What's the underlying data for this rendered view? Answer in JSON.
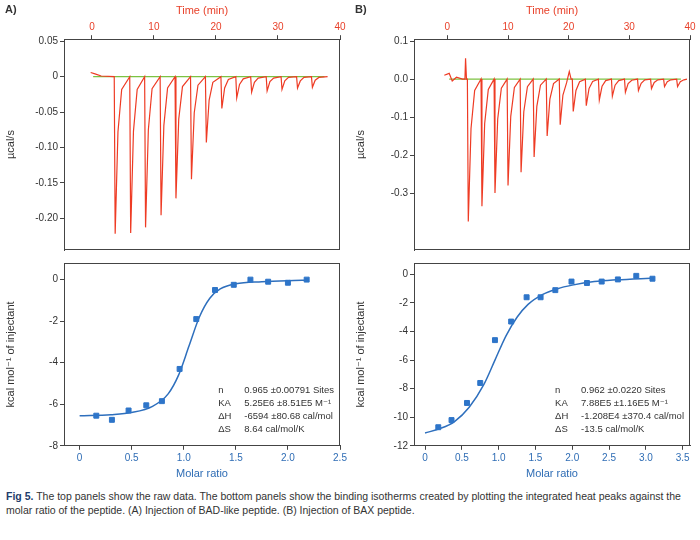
{
  "chart_data": [
    {
      "type": "line",
      "title": "A)",
      "x_label": "Time (min)",
      "y_label": "µcal/s",
      "xlim": [
        -4.5,
        40
      ],
      "xticks": [
        0,
        10,
        20,
        30,
        40
      ],
      "ylim": [
        -0.245,
        0.053
      ],
      "yticks": [
        {
          "value": -0.2,
          "label": "-0.20"
        },
        -0.15,
        {
          "value": -0.1,
          "label": "-0.10"
        },
        -0.05,
        0,
        0.05
      ],
      "grid": false,
      "series": [
        {
          "color": "#ee3b24",
          "marker": "none",
          "line_style": "solid",
          "x": [
            -0.2,
            0.5,
            1.5,
            3.6,
            3.75,
            4.2,
            4.8,
            6.1,
            6.25,
            6.7,
            7.3,
            8.5,
            8.65,
            9.1,
            9.7,
            11.0,
            11.15,
            11.6,
            12.2,
            13.4,
            13.55,
            14.0,
            14.6,
            15.9,
            16.05,
            16.5,
            17.1,
            18.3,
            18.45,
            18.9,
            19.5,
            20.8,
            20.95,
            21.4,
            22.0,
            23.2,
            23.35,
            23.8,
            24.4,
            25.6,
            25.75,
            26.2,
            26.8,
            28.1,
            28.25,
            28.7,
            29.3,
            30.5,
            30.65,
            31.1,
            31.7,
            33.0,
            33.15,
            33.6,
            34.2,
            35.4,
            35.55,
            36.0,
            36.6,
            38.0
          ],
          "values": [
            0.006,
            0.004,
            0.001,
            0,
            -0.222,
            -0.078,
            -0.018,
            0,
            -0.221,
            -0.077,
            -0.018,
            0,
            -0.213,
            -0.075,
            -0.017,
            0,
            -0.196,
            -0.069,
            -0.016,
            0,
            -0.172,
            -0.06,
            -0.014,
            0,
            -0.145,
            -0.051,
            -0.012,
            0,
            -0.093,
            -0.033,
            -0.008,
            0,
            -0.045,
            -0.016,
            -0.004,
            0,
            -0.03,
            -0.011,
            -0.003,
            0,
            -0.022,
            -0.008,
            -0.002,
            0,
            -0.02,
            -0.007,
            -0.002,
            0,
            -0.018,
            -0.006,
            -0.001,
            0,
            -0.016,
            -0.006,
            -0.001,
            0,
            -0.015,
            -0.005,
            -0.001,
            0
          ]
        },
        {
          "color": "#7cc242",
          "marker": "none",
          "line_style": "solid",
          "x": [
            0.2,
            37.5
          ],
          "values": [
            0,
            0
          ]
        }
      ]
    },
    {
      "type": "scatter",
      "x_label": "Molar ratio",
      "y_label": "kcal mol⁻¹ of injectant",
      "xlim": [
        -0.15,
        2.5
      ],
      "xticks": [
        0,
        0.5,
        {
          "value": 1,
          "label": "1.0"
        },
        1.5,
        {
          "value": 2,
          "label": "2.0"
        },
        2.5
      ],
      "ylim": [
        -8,
        0.8
      ],
      "yticks": [
        -8,
        -6,
        -4,
        -2,
        0
      ],
      "grid": false,
      "series": [
        {
          "type": "scatter",
          "color": "#2e75c9",
          "marker": "square",
          "x": [
            0.16,
            0.31,
            0.47,
            0.64,
            0.79,
            0.96,
            1.12,
            1.3,
            1.48,
            1.64,
            1.81,
            2.0,
            2.18
          ],
          "values": [
            -6.55,
            -6.75,
            -6.3,
            -6.05,
            -5.85,
            -4.3,
            -1.9,
            -0.5,
            -0.25,
            0.0,
            -0.1,
            -0.15,
            0.0
          ]
        },
        {
          "type": "line",
          "color": "#2e6fbd",
          "marker": "none",
          "line_style": "solid",
          "x": [
            0.0,
            0.3,
            0.5,
            0.7,
            0.85,
            0.95,
            1.05,
            1.15,
            1.25,
            1.35,
            1.5,
            1.75,
            2.0,
            2.2
          ],
          "values": [
            -6.55,
            -6.5,
            -6.4,
            -6.1,
            -5.5,
            -4.6,
            -3.2,
            -1.8,
            -0.9,
            -0.45,
            -0.2,
            -0.1,
            -0.05,
            -0.03
          ]
        }
      ],
      "annotations": [
        {
          "label": "n",
          "text": "0.965 ±0.00791 Sites"
        },
        {
          "label": "KA",
          "text": "5.25E6 ±8.51E5 M⁻¹"
        },
        {
          "label": "ΔH",
          "text": "-6594 ±80.68 cal/mol"
        },
        {
          "label": "ΔS",
          "text": "8.64 cal/mol/K"
        }
      ]
    },
    {
      "type": "line",
      "title": "B)",
      "x_label": "Time (min)",
      "y_label": "µcal/s",
      "xlim": [
        -5.5,
        40
      ],
      "xticks": [
        0,
        10,
        20,
        30,
        40
      ],
      "ylim": [
        -0.45,
        0.105
      ],
      "yticks": [
        -0.3,
        -0.2,
        -0.1,
        {
          "value": 0,
          "label": "0.0"
        },
        0.1
      ],
      "grid": false,
      "series": [
        {
          "color": "#ee3b24",
          "marker": "none",
          "line_style": "solid",
          "x": [
            -0.5,
            0.3,
            0.8,
            1.5,
            2.5,
            2.9,
            3.0,
            3.15,
            3.3,
            3.45,
            3.9,
            4.5,
            5.55,
            5.7,
            6.15,
            6.75,
            7.7,
            7.85,
            8.3,
            8.9,
            9.85,
            10.0,
            10.45,
            11.05,
            12.0,
            12.15,
            12.6,
            13.2,
            14.15,
            14.3,
            14.75,
            15.35,
            16.3,
            16.45,
            16.9,
            17.5,
            18.45,
            18.6,
            19.05,
            19.65,
            20.1,
            20.4,
            20.6,
            20.75,
            21.2,
            21.8,
            22.75,
            22.9,
            23.35,
            23.95,
            24.9,
            25.05,
            25.5,
            26.1,
            27.05,
            27.2,
            27.65,
            28.25,
            29.2,
            29.35,
            29.8,
            30.4,
            31.35,
            31.5,
            31.95,
            32.55,
            33.5,
            33.65,
            34.1,
            34.7,
            35.65,
            35.8,
            36.25,
            36.85,
            37.8,
            37.95,
            38.4,
            39.0,
            39.5
          ],
          "values": [
            0.01,
            0.015,
            -0.005,
            0.005,
            0,
            0,
            0.055,
            0,
            0,
            -0.375,
            -0.13,
            -0.03,
            0,
            -0.335,
            -0.117,
            -0.027,
            0,
            -0.3,
            -0.105,
            -0.024,
            0,
            -0.28,
            -0.098,
            -0.022,
            0,
            -0.245,
            -0.086,
            -0.02,
            0,
            -0.205,
            -0.072,
            -0.016,
            0,
            -0.15,
            -0.053,
            -0.012,
            0,
            -0.12,
            -0.042,
            -0.01,
            0.02,
            0,
            0,
            -0.085,
            -0.03,
            -0.007,
            0,
            -0.07,
            -0.025,
            -0.006,
            0,
            -0.055,
            -0.019,
            -0.004,
            0,
            -0.045,
            -0.016,
            -0.004,
            0,
            -0.035,
            -0.012,
            -0.003,
            0,
            -0.03,
            -0.011,
            -0.002,
            0,
            -0.025,
            -0.009,
            -0.002,
            0,
            -0.02,
            -0.007,
            -0.002,
            0,
            -0.02,
            -0.007,
            -0.002,
            0
          ]
        },
        {
          "color": "#7cc242",
          "marker": "none",
          "line_style": "solid",
          "x": [
            0.3,
            38.5
          ],
          "values": [
            0,
            0
          ]
        }
      ]
    },
    {
      "type": "scatter",
      "x_label": "Molar ratio",
      "y_label": "kcal mol⁻¹ of injectant",
      "xlim": [
        -0.15,
        3.6
      ],
      "xticks": [
        0,
        0.5,
        {
          "value": 1,
          "label": "1.0"
        },
        1.5,
        {
          "value": 2,
          "label": "2.0"
        },
        2.5,
        {
          "value": 3,
          "label": "3.0"
        },
        3.5
      ],
      "ylim": [
        -12,
        0.8
      ],
      "yticks": [
        -12,
        -10,
        -8,
        -6,
        -4,
        -2,
        0
      ],
      "grid": false,
      "series": [
        {
          "type": "scatter",
          "color": "#2e75c9",
          "marker": "square",
          "x": [
            0.18,
            0.36,
            0.57,
            0.75,
            0.95,
            1.17,
            1.38,
            1.57,
            1.77,
            1.99,
            2.2,
            2.4,
            2.62,
            2.87,
            3.09
          ],
          "values": [
            -10.7,
            -10.2,
            -9.0,
            -7.6,
            -4.6,
            -3.3,
            -1.6,
            -1.6,
            -1.1,
            -0.5,
            -0.6,
            -0.5,
            -0.35,
            -0.1,
            -0.3
          ]
        },
        {
          "type": "line",
          "color": "#2e6fbd",
          "marker": "none",
          "line_style": "solid",
          "x": [
            0.0,
            0.2,
            0.4,
            0.6,
            0.8,
            0.95,
            1.1,
            1.25,
            1.4,
            1.6,
            1.8,
            2.0,
            2.3,
            2.6,
            3.0,
            3.1
          ],
          "values": [
            -11.1,
            -10.8,
            -10.3,
            -9.3,
            -7.7,
            -6.0,
            -4.3,
            -3.0,
            -2.1,
            -1.4,
            -1.0,
            -0.75,
            -0.5,
            -0.38,
            -0.28,
            -0.26
          ]
        }
      ],
      "annotations": [
        {
          "label": "n",
          "text": "0.962 ±0.0220 Sites"
        },
        {
          "label": "KA",
          "text": "7.88E5 ±1.16E5 M⁻¹"
        },
        {
          "label": "ΔH",
          "text": "-1.208E4 ±370.4 cal/mol"
        },
        {
          "label": "ΔS",
          "text": "-13.5 cal/mol/K"
        }
      ]
    }
  ],
  "caption": {
    "label": "Fig 5.",
    "text": "The top panels show the raw data. The bottom panels show the binding isotherms created by plotting the integrated heat peaks against the molar ratio of the peptide. (A) Injection of BAD-like peptide. (B) Injection of BAX peptide."
  }
}
